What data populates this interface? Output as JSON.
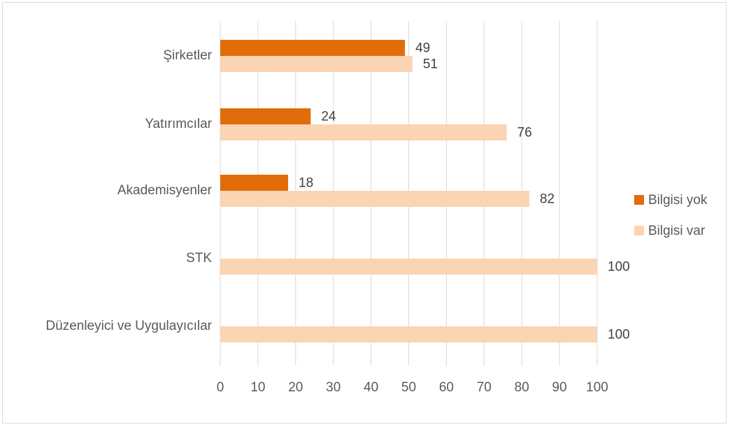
{
  "chart_data": {
    "type": "bar",
    "orientation": "horizontal",
    "categories": [
      "Şirketler",
      "Yatırımcılar",
      "Akademisyenler",
      "STK",
      "Düzenleyici ve Uygulayıcılar"
    ],
    "series": [
      {
        "name": "Bilgisi yok",
        "values": [
          49,
          24,
          18,
          null,
          null
        ],
        "color": "#E36C0A"
      },
      {
        "name": "Bilgisi var",
        "values": [
          51,
          76,
          82,
          100,
          100
        ],
        "color": "#FBD4B4"
      }
    ],
    "xlim": [
      0,
      100
    ],
    "xticks": [
      0,
      10,
      20,
      30,
      40,
      50,
      60,
      70,
      80,
      90,
      100
    ],
    "grid": "vertical",
    "legend": "right",
    "title": "",
    "xlabel": "",
    "ylabel": ""
  }
}
